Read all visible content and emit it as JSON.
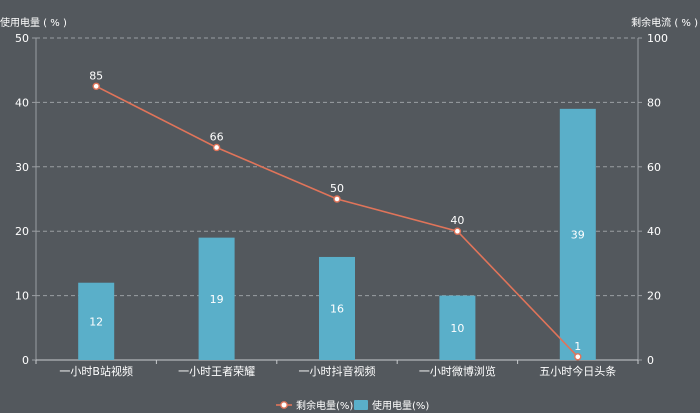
{
  "chart_data": {
    "type": "bar",
    "categories": [
      "一小时B站视频",
      "一小时王者荣耀",
      "一小时抖音视频",
      "一小时微博浏览",
      "五小时今日头条"
    ],
    "series": [
      {
        "name": "使用电量(%)",
        "type": "bar",
        "axis": "left",
        "values": [
          12,
          19,
          16,
          10,
          39
        ],
        "color": "#5aafc9"
      },
      {
        "name": "剩余电量(%)",
        "type": "line",
        "axis": "right",
        "values": [
          85,
          66,
          50,
          40,
          1
        ],
        "color": "#e0745a"
      }
    ],
    "y_left": {
      "label": "使用电量 ( % )",
      "range": [
        0,
        50
      ],
      "ticks": [
        0,
        10,
        20,
        30,
        40,
        50
      ]
    },
    "y_right": {
      "label": "剩余电流 ( % )",
      "range": [
        0,
        100
      ],
      "ticks": [
        0,
        20,
        40,
        60,
        80,
        100
      ]
    },
    "grid": true,
    "legend_position": "bottom-center",
    "colors": {
      "background": "#53585d",
      "grid": "#9a9ea2",
      "text": "#ffffff"
    }
  }
}
